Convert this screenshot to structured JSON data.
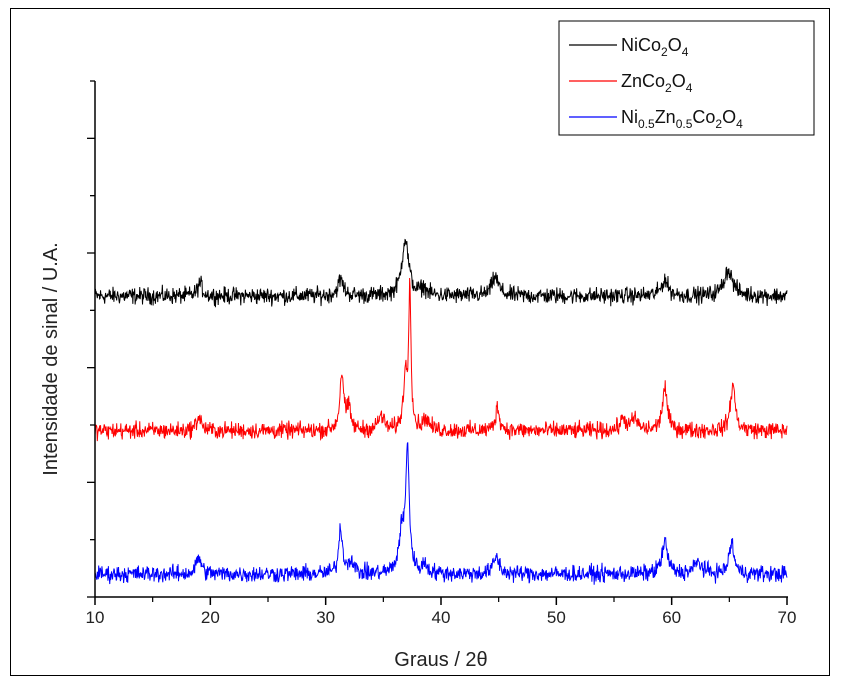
{
  "chart_data": {
    "type": "line",
    "title": "",
    "xlabel": "Graus / 2θ",
    "ylabel": "Intensidade de sinal / U.A.",
    "xlim": [
      10,
      70
    ],
    "xticks": [
      "10",
      "20",
      "30",
      "40",
      "50",
      "60",
      "70"
    ],
    "y_tick_labels": "none",
    "grid": false,
    "legend_position": "top-right",
    "series": [
      {
        "legend": [
          {
            "t": "NiCo"
          },
          {
            "t": "2",
            "sub": true
          },
          {
            "t": "O"
          },
          {
            "t": "4",
            "sub": true
          }
        ],
        "color": "#000000",
        "baseline": 5.25,
        "noise": 0.12,
        "peaks": [
          [
            19.1,
            0.22,
            0.25
          ],
          [
            31.3,
            0.28,
            0.3
          ],
          [
            36.9,
            1.0,
            0.35
          ],
          [
            38.5,
            0.12,
            0.3
          ],
          [
            44.7,
            0.33,
            0.35
          ],
          [
            59.4,
            0.28,
            0.35
          ],
          [
            64.9,
            0.45,
            0.45
          ]
        ]
      },
      {
        "legend": [
          {
            "t": "ZnCo"
          },
          {
            "t": "2",
            "sub": true
          },
          {
            "t": "O"
          },
          {
            "t": "4",
            "sub": true
          }
        ],
        "color": "#ff0000",
        "baseline": 2.9,
        "noise": 0.12,
        "peaks": [
          [
            19.0,
            0.25,
            0.25
          ],
          [
            31.4,
            1.0,
            0.2
          ],
          [
            32.0,
            0.35,
            0.2
          ],
          [
            34.8,
            0.25,
            0.3
          ],
          [
            36.9,
            0.9,
            0.2
          ],
          [
            37.3,
            2.5,
            0.12
          ],
          [
            38.7,
            0.2,
            0.3
          ],
          [
            44.9,
            0.4,
            0.22
          ],
          [
            55.8,
            0.2,
            0.3
          ],
          [
            56.8,
            0.2,
            0.3
          ],
          [
            59.4,
            0.75,
            0.25
          ],
          [
            65.3,
            0.8,
            0.25
          ]
        ]
      },
      {
        "legend": [
          {
            "t": "Ni"
          },
          {
            "t": "0.5",
            "sub": true
          },
          {
            "t": "Zn"
          },
          {
            "t": "0.5",
            "sub": true
          },
          {
            "t": "Co"
          },
          {
            "t": "2",
            "sub": true
          },
          {
            "t": "O"
          },
          {
            "t": "4",
            "sub": true
          }
        ],
        "color": "#0000ff",
        "baseline": 0.4,
        "noise": 0.12,
        "peaks": [
          [
            19.0,
            0.3,
            0.25
          ],
          [
            31.3,
            0.8,
            0.2
          ],
          [
            32.2,
            0.25,
            0.25
          ],
          [
            36.6,
            0.7,
            0.3
          ],
          [
            37.1,
            2.1,
            0.18
          ],
          [
            38.6,
            0.15,
            0.3
          ],
          [
            44.8,
            0.3,
            0.3
          ],
          [
            59.4,
            0.55,
            0.3
          ],
          [
            62.3,
            0.2,
            0.4
          ],
          [
            65.2,
            0.55,
            0.25
          ]
        ]
      }
    ]
  }
}
